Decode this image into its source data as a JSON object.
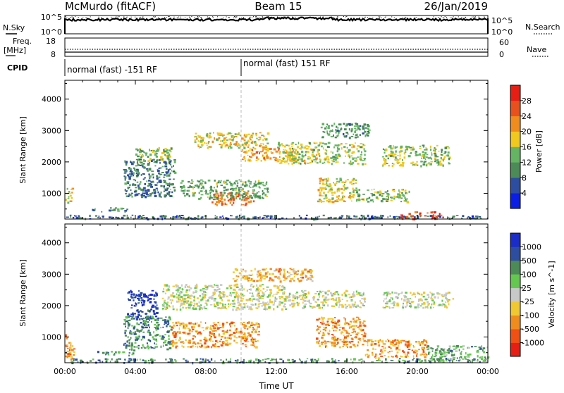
{
  "header": {
    "station": "McMurdo (fitACF)",
    "beam": "Beam 15",
    "date": "26/Jan/2019"
  },
  "status_panels": {
    "nsky_label": "N.Sky",
    "nsky_ticks": [
      "10^5",
      "10^0"
    ],
    "nsearch_label": "N.Search",
    "nsearch_ticks": [
      "10^5",
      "10^0"
    ],
    "freq_label_line1": "Freq.",
    "freq_label_line2": "[MHz]",
    "freq_ticks": [
      "18",
      "8"
    ],
    "nave_label": "Nave",
    "nave_ticks": [
      "60",
      "0"
    ],
    "cpid_label": "CPID",
    "cpid_segments": [
      {
        "text": "normal (fast) -151 RF",
        "start_hour": 0,
        "end_hour": 10
      },
      {
        "text": "normal (fast) 151 RF",
        "start_hour": 10,
        "end_hour": 24
      }
    ]
  },
  "chart_data": [
    {
      "type": "heatmap",
      "title": "",
      "xlabel": "",
      "ylabel": "Slant Range [km]",
      "xlim": [
        0,
        24
      ],
      "ylim": [
        180,
        4600
      ],
      "y_ticks": [
        "1000",
        "2000",
        "3000",
        "4000"
      ],
      "colorbar": {
        "label": "Power [dB]",
        "ticks": [
          "4",
          "8",
          "12",
          "16",
          "20",
          "24",
          "28"
        ],
        "range": [
          0,
          32
        ],
        "colors": [
          "#0a1ee6",
          "#2d4ea0",
          "#4c8a58",
          "#64b464",
          "#f0c81e",
          "#f08c1e",
          "#e8501e",
          "#e61e14"
        ]
      },
      "echo_regions": [
        {
          "t0": 0.0,
          "t1": 24.0,
          "r0": 200,
          "r1": 320,
          "level": 0.22
        },
        {
          "t0": 19.0,
          "t1": 21.5,
          "r0": 200,
          "r1": 430,
          "level": 0.85
        },
        {
          "t0": 4.0,
          "t1": 6.0,
          "r0": 2000,
          "r1": 2500,
          "level": 0.45
        },
        {
          "t0": 3.3,
          "t1": 6.2,
          "r0": 900,
          "r1": 2100,
          "level": 0.28
        },
        {
          "t0": 7.3,
          "t1": 11.5,
          "r0": 2450,
          "r1": 2950,
          "level": 0.55
        },
        {
          "t0": 10.0,
          "t1": 13.0,
          "r0": 2050,
          "r1": 2450,
          "level": 0.65
        },
        {
          "t0": 12.0,
          "t1": 17.0,
          "r0": 1950,
          "r1": 2650,
          "level": 0.5
        },
        {
          "t0": 14.5,
          "t1": 17.2,
          "r0": 2800,
          "r1": 3250,
          "level": 0.35
        },
        {
          "t0": 18.0,
          "t1": 21.8,
          "r0": 1900,
          "r1": 2550,
          "level": 0.48
        },
        {
          "t0": 8.3,
          "t1": 10.8,
          "r0": 650,
          "r1": 1050,
          "level": 0.78
        },
        {
          "t0": 6.5,
          "t1": 11.5,
          "r0": 850,
          "r1": 1450,
          "level": 0.4
        },
        {
          "t0": 14.3,
          "t1": 16.5,
          "r0": 750,
          "r1": 1500,
          "level": 0.55
        },
        {
          "t0": 16.5,
          "t1": 19.5,
          "r0": 750,
          "r1": 1150,
          "level": 0.42
        },
        {
          "t0": 0.0,
          "t1": 0.4,
          "r0": 700,
          "r1": 1200,
          "level": 0.55
        },
        {
          "t0": 1.5,
          "t1": 3.5,
          "r0": 430,
          "r1": 560,
          "level": 0.3
        }
      ]
    },
    {
      "type": "heatmap",
      "title": "",
      "xlabel": "Time UT",
      "ylabel": "Slant Range [km]",
      "xlim": [
        0,
        24
      ],
      "ylim": [
        180,
        4600
      ],
      "x_ticks": [
        "00:00",
        "04:00",
        "08:00",
        "12:00",
        "16:00",
        "20:00",
        "00:00"
      ],
      "y_ticks": [
        "1000",
        "2000",
        "3000",
        "4000"
      ],
      "colorbar": {
        "label": "Velocity [m s^-1]",
        "ticks": [
          "1000",
          "500",
          "100",
          "25",
          "-25",
          "-100",
          "-500",
          "-1000"
        ],
        "range": [
          -1250,
          1250
        ],
        "colors": [
          "#e61e14",
          "#f05014",
          "#f08c1e",
          "#f0c832",
          "#c8c8c8",
          "#64c850",
          "#4c8a58",
          "#2d4ea0",
          "#1a2dc8"
        ]
      },
      "echo_regions": [
        {
          "t0": 0.0,
          "t1": 24.0,
          "r0": 200,
          "r1": 330,
          "level": 0.7
        },
        {
          "t0": 3.5,
          "t1": 5.2,
          "r0": 1600,
          "r1": 2500,
          "level": 0.9
        },
        {
          "t0": 3.3,
          "t1": 6.0,
          "r0": 600,
          "r1": 1700,
          "level": 0.72
        },
        {
          "t0": 1.8,
          "t1": 4.0,
          "r0": 430,
          "r1": 560,
          "level": 0.72
        },
        {
          "t0": 5.5,
          "t1": 12.5,
          "r0": 1900,
          "r1": 2700,
          "level": 0.5
        },
        {
          "t0": 12.5,
          "t1": 17.0,
          "r0": 1950,
          "r1": 2500,
          "level": 0.5
        },
        {
          "t0": 18.0,
          "t1": 22.0,
          "r0": 1950,
          "r1": 2450,
          "level": 0.5
        },
        {
          "t0": 6.0,
          "t1": 11.0,
          "r0": 700,
          "r1": 1500,
          "level": 0.28
        },
        {
          "t0": 14.2,
          "t1": 17.0,
          "r0": 700,
          "r1": 1650,
          "level": 0.28
        },
        {
          "t0": 17.0,
          "t1": 20.5,
          "r0": 350,
          "r1": 950,
          "level": 0.3
        },
        {
          "t0": 20.5,
          "t1": 24.0,
          "r0": 250,
          "r1": 750,
          "level": 0.65
        },
        {
          "t0": 0.0,
          "t1": 0.5,
          "r0": 300,
          "r1": 1100,
          "level": 0.3
        },
        {
          "t0": 9.5,
          "t1": 14.0,
          "r0": 2800,
          "r1": 3200,
          "level": 0.35
        }
      ]
    }
  ]
}
